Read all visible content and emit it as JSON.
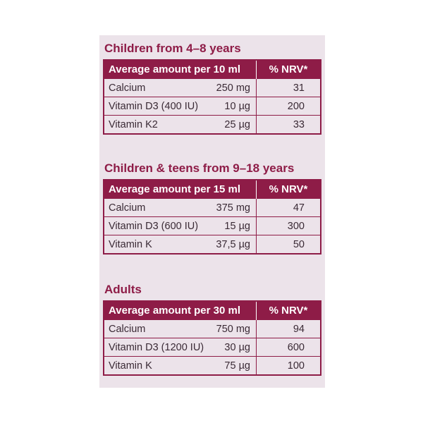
{
  "sections": [
    {
      "heading": "Children from 4–8 years",
      "table": {
        "header": [
          "Average amount per 10 ml",
          "% NRV*"
        ],
        "rows": [
          [
            "Calcium",
            "250 mg",
            31
          ],
          [
            "Vitamin D3 (400 IU)",
            "10 µg",
            200
          ],
          [
            "Vitamin K2",
            "25 µg",
            33
          ]
        ]
      }
    },
    {
      "heading": "Children & teens from 9–18 years",
      "table": {
        "header": [
          "Average amount per 15 ml",
          "% NRV*"
        ],
        "rows": [
          [
            "Calcium",
            "375 mg",
            47
          ],
          [
            "Vitamin D3 (600 IU)",
            "15 µg",
            300
          ],
          [
            "Vitamin K",
            "37,5 µg",
            50
          ]
        ]
      }
    },
    {
      "heading": "Adults",
      "table": {
        "header": [
          "Average amount per 30 ml",
          "% NRV*"
        ],
        "rows": [
          [
            "Calcium",
            "750 mg",
            94
          ],
          [
            "Vitamin D3 (1200 IU)",
            "30 µg",
            600
          ],
          [
            "Vitamin K",
            "75 µg",
            100
          ]
        ]
      }
    }
  ]
}
